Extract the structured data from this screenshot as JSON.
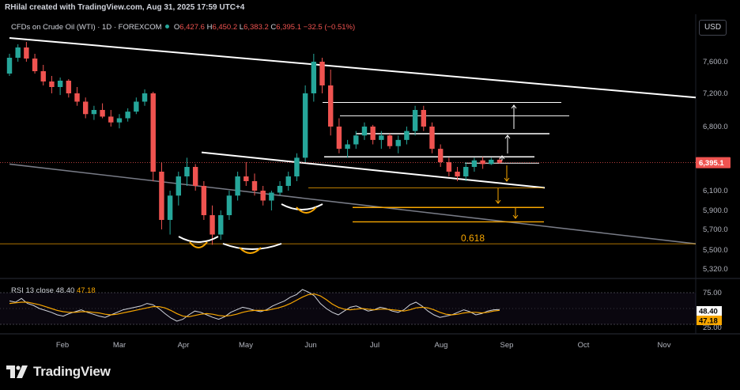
{
  "header": {
    "credit": "RHilal created with TradingView.com, Aug 31, 2025 17:59 UTC+4",
    "symbol": "CFDs on Crude Oil (WTI) · 1D · FOREXCOM",
    "ohlc": {
      "o_key": "O",
      "o": "6,427.6",
      "h_key": "H",
      "h": "6,450.2",
      "l_key": "L",
      "l": "6,383.2",
      "c_key": "C",
      "c": "6,395.1",
      "change": "−32.5 (−0.51%)"
    },
    "currency": "USD"
  },
  "colors": {
    "background": "#000000",
    "up": "#26a69a",
    "down": "#ef5350",
    "trendline_white": "#ffffff",
    "trendline_gray": "#787b86",
    "fib_orange": "#f7a600",
    "rsi_line": "#d1d4dc",
    "rsi_ma": "#f7a600"
  },
  "rsi": {
    "label_prefix": "RSI 13 close",
    "value": "48.40",
    "ma_value": "47.18",
    "levels": [
      "75.00",
      "25.00"
    ],
    "series_rsi": [
      62,
      60,
      66,
      58,
      55,
      50,
      47,
      44,
      40,
      38,
      42,
      45,
      48,
      44,
      41,
      38,
      36,
      40,
      44,
      48,
      50,
      52,
      54,
      58,
      56,
      50,
      42,
      35,
      30,
      33,
      40,
      46,
      44,
      40,
      36,
      33,
      37,
      44,
      48,
      52,
      50,
      47,
      45,
      48,
      54,
      58,
      62,
      68,
      72,
      80,
      76,
      70,
      58,
      50,
      44,
      40,
      46,
      52,
      54,
      50,
      46,
      48,
      52,
      50,
      46,
      44,
      48,
      56,
      60,
      54,
      46,
      40,
      36,
      38,
      40,
      44,
      48,
      45,
      40,
      42,
      46,
      48,
      48.4
    ],
    "series_ma": [
      58,
      59,
      60,
      60,
      58,
      56,
      53,
      50,
      47,
      45,
      44,
      44,
      45,
      45,
      44,
      43,
      41,
      40,
      41,
      43,
      45,
      47,
      49,
      51,
      53,
      53,
      51,
      47,
      42,
      38,
      37,
      39,
      41,
      42,
      41,
      39,
      38,
      39,
      41,
      44,
      46,
      47,
      47,
      47,
      49,
      51,
      54,
      58,
      63,
      68,
      72,
      73,
      70,
      64,
      57,
      52,
      49,
      48,
      49,
      50,
      49,
      48,
      49,
      49,
      48,
      47,
      46,
      48,
      51,
      52,
      51,
      48,
      44,
      41,
      40,
      41,
      43,
      44,
      44,
      43,
      44,
      46,
      47.18
    ]
  },
  "chart_data": {
    "type": "candlestick",
    "title": "CFDs on Crude Oil (WTI) · 1D · FOREXCOM",
    "y_axis_labels": [
      "7,600.0",
      "7,200.0",
      "6,800.0",
      "6,400.0",
      "6,100.0",
      "5,900.0",
      "5,700.0",
      "5,500.0",
      "5,320.0"
    ],
    "x_axis_labels": [
      "Feb",
      "Mar",
      "Apr",
      "May",
      "Jun",
      "Jul",
      "Aug",
      "Sep",
      "Oct",
      "Nov"
    ],
    "last_price": "6,395.1",
    "fib_label": "0.618",
    "fib_level": 5560,
    "ohlc": [
      [
        7450,
        7700,
        7420,
        7650
      ],
      [
        7650,
        7820,
        7600,
        7780
      ],
      [
        7780,
        7850,
        7600,
        7640
      ],
      [
        7640,
        7700,
        7450,
        7480
      ],
      [
        7480,
        7560,
        7300,
        7350
      ],
      [
        7350,
        7420,
        7200,
        7280
      ],
      [
        7280,
        7400,
        7180,
        7360
      ],
      [
        7360,
        7380,
        7150,
        7200
      ],
      [
        7200,
        7280,
        7050,
        7100
      ],
      [
        7100,
        7150,
        6900,
        6950
      ],
      [
        6950,
        7050,
        6880,
        7000
      ],
      [
        7000,
        7080,
        6900,
        6920
      ],
      [
        6920,
        7000,
        6800,
        6850
      ],
      [
        6850,
        6950,
        6780,
        6900
      ],
      [
        6900,
        7020,
        6860,
        6980
      ],
      [
        6980,
        7150,
        6950,
        7100
      ],
      [
        7100,
        7250,
        7050,
        7200
      ],
      [
        7200,
        7220,
        6200,
        6300
      ],
      [
        6300,
        6400,
        5700,
        5800
      ],
      [
        5800,
        6100,
        5650,
        6050
      ],
      [
        6050,
        6300,
        5950,
        6250
      ],
      [
        6250,
        6450,
        6150,
        6350
      ],
      [
        6350,
        6380,
        6100,
        6150
      ],
      [
        6150,
        6200,
        5800,
        5850
      ],
      [
        5850,
        5950,
        5550,
        5650
      ],
      [
        5650,
        5900,
        5600,
        5850
      ],
      [
        5850,
        6100,
        5800,
        6050
      ],
      [
        6050,
        6300,
        6000,
        6250
      ],
      [
        6250,
        6400,
        6150,
        6200
      ],
      [
        6200,
        6280,
        6050,
        6100
      ],
      [
        6100,
        6150,
        5950,
        6000
      ],
      [
        6000,
        6100,
        5900,
        6080
      ],
      [
        6080,
        6200,
        6050,
        6150
      ],
      [
        6150,
        6300,
        6100,
        6250
      ],
      [
        6250,
        6500,
        6200,
        6450
      ],
      [
        6450,
        7300,
        6400,
        7200
      ],
      [
        7200,
        7700,
        7100,
        7600
      ],
      [
        7600,
        7650,
        7200,
        7300
      ],
      [
        7300,
        7500,
        6700,
        6800
      ],
      [
        6800,
        6900,
        6500,
        6550
      ],
      [
        6550,
        6650,
        6450,
        6600
      ],
      [
        6600,
        6750,
        6550,
        6700
      ],
      [
        6700,
        6850,
        6650,
        6800
      ],
      [
        6800,
        6820,
        6600,
        6650
      ],
      [
        6650,
        6750,
        6550,
        6700
      ],
      [
        6700,
        6720,
        6550,
        6580
      ],
      [
        6580,
        6700,
        6500,
        6650
      ],
      [
        6650,
        6800,
        6600,
        6750
      ],
      [
        6750,
        7050,
        6700,
        7000
      ],
      [
        7000,
        7050,
        6750,
        6800
      ],
      [
        6800,
        6850,
        6500,
        6550
      ],
      [
        6550,
        6600,
        6350,
        6400
      ],
      [
        6400,
        6450,
        6250,
        6300
      ],
      [
        6300,
        6350,
        6200,
        6250
      ],
      [
        6250,
        6400,
        6200,
        6350
      ],
      [
        6350,
        6450,
        6300,
        6420
      ],
      [
        6420,
        6460,
        6330,
        6380
      ],
      [
        6380,
        6450,
        6370,
        6427
      ],
      [
        6427,
        6450,
        6383,
        6395
      ]
    ],
    "trendlines": [
      {
        "name": "upper-descending",
        "color": "white",
        "from": [
          0,
          7900
        ],
        "to": [
          1,
          7150
        ]
      },
      {
        "name": "mid-descending",
        "color": "white",
        "from": [
          0.28,
          6510
        ],
        "to": [
          0.78,
          6130
        ]
      },
      {
        "name": "lower-descending",
        "color": "gray",
        "from": [
          0,
          6380
        ],
        "to": [
          1,
          5560
        ]
      }
    ],
    "horizontal_levels": [
      {
        "name": "level-7100",
        "price": 7090
      },
      {
        "name": "level-6950",
        "price": 6930
      },
      {
        "name": "level-6720",
        "price": 6720
      },
      {
        "name": "level-6450",
        "price": 6460
      },
      {
        "name": "level-6380",
        "price": 6390
      }
    ],
    "orange_levels": [
      {
        "name": "level-6130",
        "price": 6130
      },
      {
        "name": "level-5930",
        "price": 5930
      },
      {
        "name": "level-5780",
        "price": 5780
      }
    ]
  },
  "branding": {
    "logo_text": "TradingView"
  }
}
